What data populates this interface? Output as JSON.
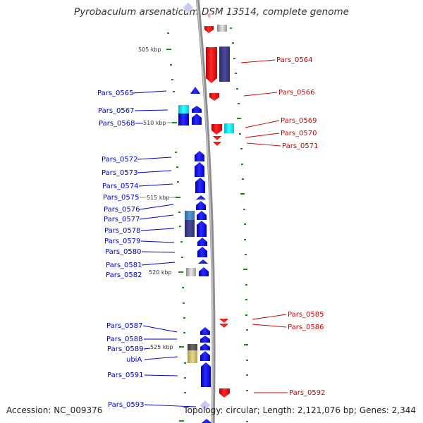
{
  "title": "Pyrobaculum arsenaticum DSM 13514, complete genome",
  "footer": {
    "accession": "Accession: NC_009376",
    "summary": "Topology: circular; Length: 2,121,076 bp; Genes: 2,344"
  },
  "colors": {
    "backbone": "#8c8c8c",
    "forward_gene": "#0000ff",
    "reverse_gene": "#ff0000",
    "forward_label": "#0000cc",
    "reverse_label": "#cc0000",
    "tick": "#1a8c1a"
  },
  "scale_ticks": [
    "505 kbp",
    "510 kbp",
    "515 kbp",
    "520 kbp",
    "525 kbp"
  ],
  "forward_labels": [
    "Pars_0565",
    "Pars_0567",
    "Pars_0568",
    "Pars_0572",
    "Pars_0573",
    "Pars_0574",
    "Pars_0575",
    "Pars_0576",
    "Pars_0577",
    "Pars_0578",
    "Pars_0579",
    "Pars_0580",
    "Pars_0581",
    "Pars_0582",
    "Pars_0587",
    "Pars_0588",
    "Pars_0589",
    "ubiA",
    "Pars_0591",
    "Pars_0593"
  ],
  "reverse_labels": [
    "Pars_0564",
    "Pars_0566",
    "Pars_0569",
    "Pars_0570",
    "Pars_0571",
    "Pars_0585",
    "Pars_0586",
    "Pars_0592"
  ]
}
